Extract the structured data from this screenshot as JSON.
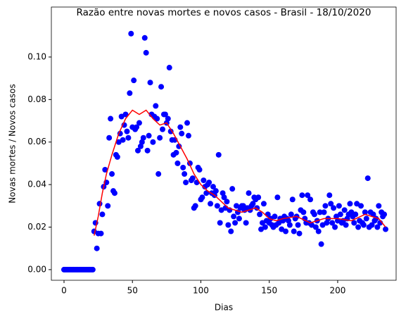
{
  "chart_data": {
    "type": "scatter",
    "title": "Razão entre novas mortes e novos casos - Brasil - 18/10/2020",
    "xlabel": "Dias",
    "ylabel": "Novas mortes / Novos casos",
    "xlim": [
      -9.25,
      242.7
    ],
    "ylim": [
      -0.005,
      0.1235
    ],
    "xticks": [
      0,
      50,
      100,
      150,
      200
    ],
    "yticks": [
      {
        "value": 0,
        "label": "0.00"
      },
      {
        "value": 0.02,
        "label": "0.02"
      },
      {
        "value": 0.04,
        "label": "0.04"
      },
      {
        "value": 0.06,
        "label": "0.06"
      },
      {
        "value": 0.08,
        "label": "0.08"
      },
      {
        "value": 0.1,
        "label": "0.10"
      }
    ],
    "series": [
      {
        "type": "scatter",
        "color": "#0000ff",
        "x": [
          0,
          1,
          2,
          3,
          4,
          5,
          6,
          7,
          8,
          9,
          10,
          11,
          12,
          13,
          14,
          15,
          16,
          17,
          18,
          19,
          20,
          21,
          22,
          23,
          24,
          25,
          26,
          27,
          28,
          29,
          30,
          31,
          32,
          33,
          34,
          35,
          36,
          37,
          38,
          39,
          40,
          41,
          42,
          43,
          44,
          45,
          46,
          47,
          48,
          49,
          50,
          51,
          52,
          53,
          54,
          55,
          56,
          57,
          58,
          59,
          60,
          61,
          62,
          63,
          64,
          65,
          66,
          67,
          68,
          69,
          70,
          71,
          72,
          73,
          74,
          75,
          76,
          77,
          78,
          79,
          80,
          81,
          82,
          83,
          84,
          85,
          86,
          87,
          88,
          89,
          90,
          91,
          92,
          93,
          94,
          95,
          96,
          97,
          98,
          99,
          100,
          101,
          102,
          103,
          104,
          105,
          106,
          107,
          108,
          109,
          110,
          111,
          112,
          113,
          114,
          115,
          116,
          117,
          118,
          119,
          120,
          121,
          122,
          123,
          124,
          125,
          126,
          127,
          128,
          129,
          130,
          131,
          132,
          133,
          134,
          135,
          136,
          137,
          138,
          139,
          140,
          141,
          142,
          143,
          144,
          145,
          146,
          147,
          148,
          149,
          150,
          151,
          152,
          153,
          154,
          155,
          156,
          157,
          158,
          159,
          160,
          161,
          162,
          163,
          164,
          165,
          166,
          167,
          168,
          169,
          170,
          171,
          172,
          173,
          174,
          175,
          176,
          177,
          178,
          179,
          180,
          181,
          182,
          183,
          184,
          185,
          186,
          187,
          188,
          189,
          190,
          191,
          192,
          193,
          194,
          195,
          196,
          197,
          198,
          199,
          200,
          201,
          202,
          203,
          204,
          205,
          206,
          207,
          208,
          209,
          210,
          211,
          212,
          213,
          214,
          215,
          216,
          217,
          218,
          219,
          220,
          221,
          222,
          223,
          224,
          225,
          226,
          227,
          228,
          229,
          230,
          231,
          232,
          233,
          234,
          235
        ],
        "values": [
          0,
          0,
          0,
          0,
          0,
          0,
          0,
          0,
          0,
          0,
          0,
          0,
          0,
          0,
          0,
          0,
          0,
          0,
          0,
          0,
          0,
          0,
          0.018,
          0.022,
          0.01,
          0.017,
          0.031,
          0.017,
          0.026,
          0.039,
          0.047,
          0.041,
          0.03,
          0.062,
          0.071,
          0.045,
          0.037,
          0.036,
          0.054,
          0.053,
          0.06,
          0.064,
          0.072,
          0.061,
          0.068,
          0.073,
          0.065,
          0.062,
          0.083,
          0.111,
          0.067,
          0.089,
          0.066,
          0.067,
          0.056,
          0.069,
          0.058,
          0.06,
          0.062,
          0.109,
          0.102,
          0.056,
          0.063,
          0.088,
          0.073,
          0.06,
          0.072,
          0.077,
          0.071,
          0.045,
          0.062,
          0.086,
          0.066,
          0.073,
          0.073,
          0.069,
          0.071,
          0.095,
          0.065,
          0.061,
          0.054,
          0.061,
          0.055,
          0.05,
          0.058,
          0.067,
          0.064,
          0.048,
          0.045,
          0.041,
          0.069,
          0.063,
          0.05,
          0.042,
          0.043,
          0.029,
          0.03,
          0.041,
          0.048,
          0.047,
          0.033,
          0.034,
          0.042,
          0.039,
          0.036,
          0.04,
          0.041,
          0.031,
          0.036,
          0.039,
          0.035,
          0.037,
          0.03,
          0.054,
          0.022,
          0.028,
          0.036,
          0.034,
          0.029,
          0.032,
          0.021,
          0.028,
          0.018,
          0.038,
          0.025,
          0.022,
          0.03,
          0.027,
          0.024,
          0.029,
          0.03,
          0.03,
          0.028,
          0.022,
          0.029,
          0.036,
          0.028,
          0.03,
          0.031,
          0.034,
          0.033,
          0.029,
          0.034,
          0.026,
          0.019,
          0.022,
          0.031,
          0.02,
          0.023,
          0.026,
          0.022,
          0.024,
          0.021,
          0.02,
          0.025,
          0.021,
          0.034,
          0.022,
          0.024,
          0.019,
          0.023,
          0.025,
          0.018,
          0.024,
          0.023,
          0.021,
          0.026,
          0.033,
          0.018,
          0.024,
          0.025,
          0.021,
          0.017,
          0.028,
          0.035,
          0.027,
          0.024,
          0.022,
          0.035,
          0.022,
          0.033,
          0.021,
          0.027,
          0.026,
          0.02,
          0.023,
          0.018,
          0.027,
          0.012,
          0.021,
          0.027,
          0.03,
          0.022,
          0.024,
          0.035,
          0.031,
          0.022,
          0.029,
          0.02,
          0.025,
          0.023,
          0.03,
          0.026,
          0.022,
          0.023,
          0.028,
          0.021,
          0.024,
          0.026,
          0.031,
          0.027,
          0.025,
          0.022,
          0.026,
          0.031,
          0.02,
          0.023,
          0.03,
          0.022,
          0.021,
          0.027,
          0.024,
          0.043,
          0.02,
          0.027,
          0.021,
          0.026,
          0.023,
          0.024,
          0.02,
          0.03,
          0.022,
          0.027,
          0.025,
          0.026,
          0.019
        ]
      },
      {
        "type": "line",
        "color": "#ff0000",
        "x": [
          22,
          25,
          28,
          31,
          35,
          40,
          45,
          50,
          55,
          60,
          65,
          70,
          75,
          80,
          85,
          90,
          95,
          100,
          105,
          110,
          115,
          120,
          125,
          130,
          135,
          140,
          145,
          150,
          155,
          160,
          170,
          180,
          190,
          200,
          210,
          220,
          225,
          230,
          235
        ],
        "values": [
          0.016,
          0.025,
          0.036,
          0.045,
          0.054,
          0.064,
          0.071,
          0.075,
          0.073,
          0.075,
          0.071,
          0.068,
          0.069,
          0.064,
          0.058,
          0.052,
          0.045,
          0.04,
          0.037,
          0.035,
          0.032,
          0.029,
          0.028,
          0.027,
          0.028,
          0.029,
          0.027,
          0.024,
          0.023,
          0.024,
          0.025,
          0.022,
          0.024,
          0.024,
          0.023,
          0.026,
          0.025,
          0.024,
          0.02
        ]
      }
    ]
  }
}
